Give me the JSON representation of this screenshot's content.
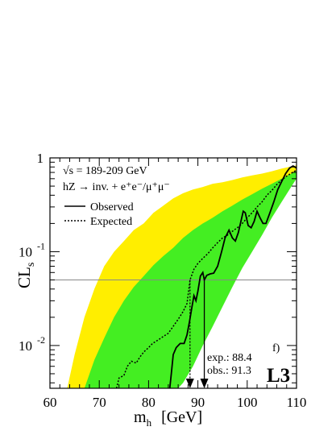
{
  "chart_data": {
    "type": "line",
    "xlabel_main": "m",
    "xlabel_sub": "h",
    "xlabel_unit": "[GeV]",
    "ylabel_main": "CL",
    "ylabel_sub": "s",
    "xlim": [
      60,
      110
    ],
    "ylim": [
      0.0035,
      1.0
    ],
    "yscale": "log",
    "x_ticks": [
      60,
      70,
      80,
      90,
      100,
      110
    ],
    "x_tick_labels": [
      "60",
      "70",
      "80",
      "90",
      "100",
      "110"
    ],
    "y_tick_labels": [
      {
        "value": 1,
        "base": "1",
        "exp": ""
      },
      {
        "value": 0.1,
        "base": "10",
        "exp": "-1"
      },
      {
        "value": 0.01,
        "base": "10",
        "exp": "-2"
      }
    ],
    "reference_line": 0.05,
    "legend": {
      "header_line1": "√s = 189-209 GeV",
      "header_line2": "hZ → inv. + e⁺e⁻/μ⁺μ⁻",
      "observed_label": "Observed",
      "expected_label": "Expected"
    },
    "annotations": {
      "panel": "f)",
      "exp_limit": "exp.: 88.4",
      "obs_limit": "obs.: 91.3",
      "experiment": "L3"
    },
    "limits": {
      "expected": 88.4,
      "observed": 91.3
    },
    "colors": {
      "band_2sigma": "#ffee00",
      "band_1sigma": "#44ee22",
      "line": "#000000",
      "reference": "#888888"
    },
    "band_2sigma": {
      "upper": [
        [
          63.5,
          0.0035
        ],
        [
          65,
          0.008
        ],
        [
          67,
          0.02
        ],
        [
          69,
          0.04
        ],
        [
          71,
          0.07
        ],
        [
          73,
          0.1
        ],
        [
          75,
          0.13
        ],
        [
          77,
          0.17
        ],
        [
          79,
          0.2
        ],
        [
          81,
          0.26
        ],
        [
          83,
          0.31
        ],
        [
          85,
          0.37
        ],
        [
          87,
          0.42
        ],
        [
          89,
          0.46
        ],
        [
          91,
          0.49
        ],
        [
          93,
          0.53
        ],
        [
          95,
          0.55
        ],
        [
          97,
          0.58
        ],
        [
          99,
          0.62
        ],
        [
          101,
          0.65
        ],
        [
          103,
          0.68
        ],
        [
          105,
          0.72
        ],
        [
          107,
          0.77
        ],
        [
          108.5,
          0.8
        ],
        [
          110,
          0.83
        ]
      ],
      "lower": [
        [
          72.5,
          0.0035
        ],
        [
          75,
          0.0035
        ],
        [
          80,
          0.0035
        ],
        [
          84,
          0.0035
        ],
        [
          86,
          0.005
        ],
        [
          88,
          0.008
        ],
        [
          90,
          0.013
        ],
        [
          92,
          0.021
        ],
        [
          94,
          0.035
        ],
        [
          96,
          0.055
        ],
        [
          98,
          0.09
        ],
        [
          100,
          0.14
        ],
        [
          102,
          0.21
        ],
        [
          104,
          0.3
        ],
        [
          106,
          0.42
        ],
        [
          108,
          0.55
        ],
        [
          110,
          0.7
        ]
      ]
    },
    "band_1sigma": {
      "upper": [
        [
          67,
          0.0035
        ],
        [
          69,
          0.007
        ],
        [
          71,
          0.012
        ],
        [
          73,
          0.02
        ],
        [
          75,
          0.03
        ],
        [
          77,
          0.042
        ],
        [
          79,
          0.055
        ],
        [
          81,
          0.072
        ],
        [
          83,
          0.09
        ],
        [
          85,
          0.11
        ],
        [
          87,
          0.14
        ],
        [
          89,
          0.17
        ],
        [
          91,
          0.2
        ],
        [
          93,
          0.23
        ],
        [
          95,
          0.27
        ],
        [
          97,
          0.31
        ],
        [
          99,
          0.36
        ],
        [
          101,
          0.41
        ],
        [
          103,
          0.47
        ],
        [
          105,
          0.53
        ],
        [
          107,
          0.6
        ],
        [
          109,
          0.68
        ],
        [
          110,
          0.73
        ]
      ],
      "lower": [
        [
          78,
          0.0035
        ],
        [
          82,
          0.0035
        ],
        [
          86,
          0.0035
        ],
        [
          87,
          0.004
        ],
        [
          89,
          0.006
        ],
        [
          91,
          0.01
        ],
        [
          93,
          0.016
        ],
        [
          95,
          0.026
        ],
        [
          97,
          0.042
        ],
        [
          99,
          0.067
        ],
        [
          101,
          0.1
        ],
        [
          103,
          0.15
        ],
        [
          105,
          0.23
        ],
        [
          107,
          0.34
        ],
        [
          109,
          0.5
        ],
        [
          110,
          0.6
        ]
      ]
    },
    "series": [
      {
        "name": "Observed",
        "style": "solid",
        "points": [
          [
            84.3,
            0.0035
          ],
          [
            84.6,
            0.005
          ],
          [
            85,
            0.008
          ],
          [
            85.6,
            0.0095
          ],
          [
            86.4,
            0.0105
          ],
          [
            87.2,
            0.0105
          ],
          [
            87.8,
            0.013
          ],
          [
            88.3,
            0.018
          ],
          [
            88.8,
            0.026
          ],
          [
            89.2,
            0.034
          ],
          [
            89.6,
            0.03
          ],
          [
            90,
            0.038
          ],
          [
            90.5,
            0.055
          ],
          [
            91,
            0.06
          ],
          [
            91.3,
            0.05
          ],
          [
            91.8,
            0.056
          ],
          [
            92.5,
            0.058
          ],
          [
            93.2,
            0.059
          ],
          [
            94,
            0.07
          ],
          [
            94.8,
            0.1
          ],
          [
            95.5,
            0.14
          ],
          [
            96.3,
            0.17
          ],
          [
            97,
            0.14
          ],
          [
            97.6,
            0.13
          ],
          [
            98.2,
            0.16
          ],
          [
            98.8,
            0.22
          ],
          [
            99.2,
            0.27
          ],
          [
            99.6,
            0.26
          ],
          [
            100.2,
            0.19
          ],
          [
            100.8,
            0.18
          ],
          [
            101.4,
            0.21
          ],
          [
            102,
            0.27
          ],
          [
            102.6,
            0.23
          ],
          [
            103.2,
            0.2
          ],
          [
            103.8,
            0.2
          ],
          [
            104.6,
            0.26
          ],
          [
            105.4,
            0.34
          ],
          [
            106.2,
            0.46
          ],
          [
            107,
            0.56
          ],
          [
            107.8,
            0.68
          ],
          [
            108.6,
            0.78
          ],
          [
            109.3,
            0.82
          ],
          [
            110,
            0.78
          ]
        ]
      },
      {
        "name": "Expected",
        "style": "dotted",
        "points": [
          [
            73.5,
            0.0035
          ],
          [
            74,
            0.0045
          ],
          [
            75,
            0.0048
          ],
          [
            75.7,
            0.006
          ],
          [
            76.5,
            0.0068
          ],
          [
            77.5,
            0.0065
          ],
          [
            78.2,
            0.0075
          ],
          [
            79,
            0.0085
          ],
          [
            80,
            0.0095
          ],
          [
            80.8,
            0.0105
          ],
          [
            82,
            0.0115
          ],
          [
            83,
            0.0125
          ],
          [
            84,
            0.0135
          ],
          [
            85,
            0.016
          ],
          [
            86,
            0.019
          ],
          [
            87,
            0.023
          ],
          [
            87.8,
            0.028
          ],
          [
            88.4,
            0.05
          ],
          [
            89.2,
            0.065
          ],
          [
            90,
            0.075
          ],
          [
            91,
            0.085
          ],
          [
            92,
            0.095
          ],
          [
            93,
            0.11
          ],
          [
            94,
            0.125
          ],
          [
            95,
            0.14
          ],
          [
            96,
            0.15
          ],
          [
            97,
            0.165
          ],
          [
            98,
            0.18
          ],
          [
            99,
            0.2
          ],
          [
            100,
            0.23
          ],
          [
            101,
            0.26
          ],
          [
            102,
            0.3
          ],
          [
            103,
            0.34
          ],
          [
            104,
            0.4
          ],
          [
            105,
            0.45
          ],
          [
            106,
            0.52
          ],
          [
            107,
            0.58
          ],
          [
            108,
            0.64
          ],
          [
            109,
            0.69
          ],
          [
            110,
            0.74
          ]
        ]
      }
    ]
  }
}
